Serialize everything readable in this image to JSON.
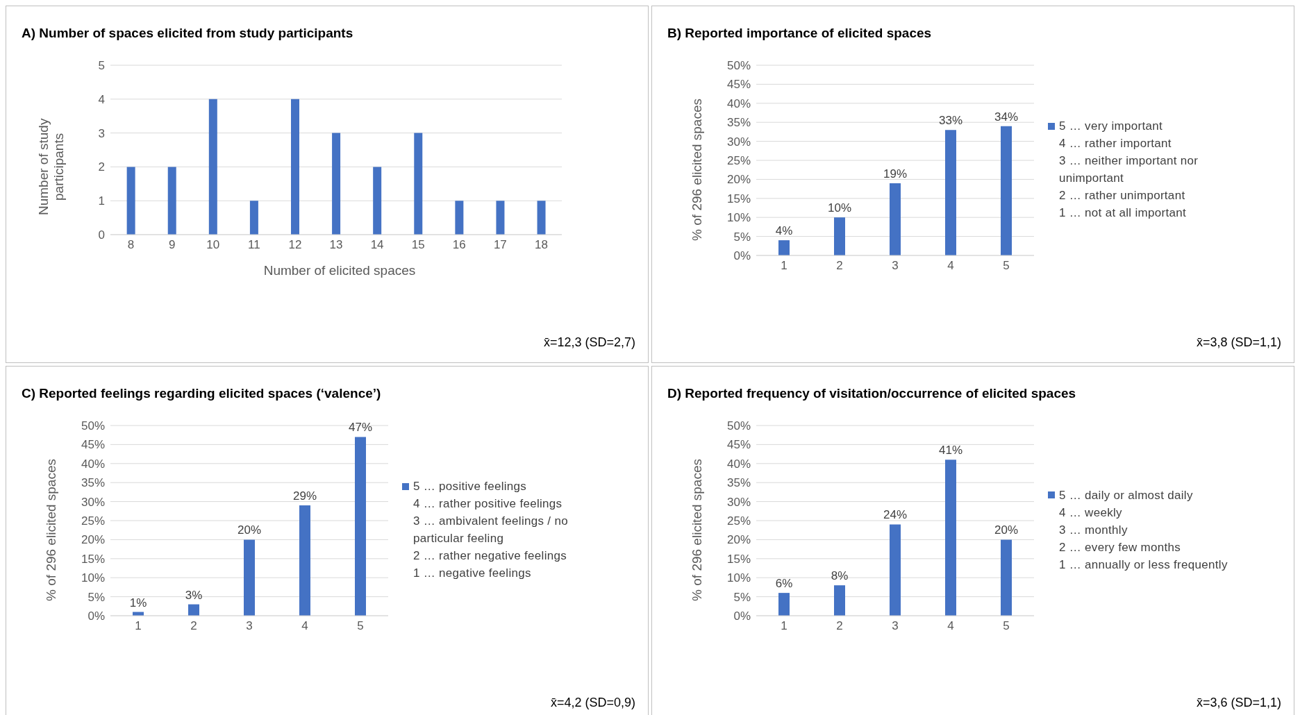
{
  "chart_data": [
    {
      "type": "bar",
      "title": "A) Number of spaces elicited from study participants",
      "categories": [
        "8",
        "9",
        "10",
        "11",
        "12",
        "13",
        "14",
        "15",
        "16",
        "17",
        "18"
      ],
      "values": [
        2,
        2,
        4,
        1,
        4,
        3,
        2,
        3,
        1,
        1,
        1
      ],
      "color": "#4472c4",
      "xlabel": "Number of elicited spaces",
      "ylabel": "Number of study participants",
      "ylim": [
        0,
        5
      ],
      "yticks": [
        0,
        1,
        2,
        3,
        4,
        5
      ],
      "grid": "y",
      "legend": false,
      "annotations": [
        "x̄=12,3 (SD=2,7)"
      ]
    },
    {
      "type": "bar",
      "title": "B) Reported importance of elicited spaces",
      "categories": [
        "1",
        "2",
        "3",
        "4",
        "5"
      ],
      "series": [
        {
          "name": "5 … very important",
          "color": "#4472c4",
          "values": [
            4,
            10,
            19,
            33,
            34
          ],
          "value_labels": [
            "4%",
            "10%",
            "19%",
            "33%",
            "34%"
          ]
        }
      ],
      "ylabel": "% of 296 elicited spaces",
      "ylim": [
        0,
        50
      ],
      "yticks": [
        {
          "value": 0,
          "label": "0%"
        },
        {
          "value": 5,
          "label": "5%"
        },
        {
          "value": 10,
          "label": "10%"
        },
        {
          "value": 15,
          "label": "15%"
        },
        {
          "value": 20,
          "label": "20%"
        },
        {
          "value": 25,
          "label": "25%"
        },
        {
          "value": 30,
          "label": "30%"
        },
        {
          "value": 35,
          "label": "35%"
        },
        {
          "value": 40,
          "label": "40%"
        },
        {
          "value": 45,
          "label": "45%"
        },
        {
          "value": 50,
          "label": "50%"
        }
      ],
      "grid": "y",
      "legend": "right",
      "annotations": [
        "4 … rather important",
        "3 … neither important nor unimportant",
        "2 … rather unimportant",
        "1 … not at all important",
        "x̄=3,8 (SD=1,1)"
      ]
    },
    {
      "type": "bar",
      "title": "C) Reported feelings regarding elicited spaces (‘valence’)",
      "categories": [
        "1",
        "2",
        "3",
        "4",
        "5"
      ],
      "series": [
        {
          "name": "5 … positive feelings",
          "color": "#4472c4",
          "values": [
            1,
            3,
            20,
            29,
            47
          ],
          "value_labels": [
            "1%",
            "3%",
            "20%",
            "29%",
            "47%"
          ]
        }
      ],
      "ylabel": "% of 296 elicited spaces",
      "ylim": [
        0,
        50
      ],
      "yticks": [
        {
          "value": 0,
          "label": "0%"
        },
        {
          "value": 5,
          "label": "5%"
        },
        {
          "value": 10,
          "label": "10%"
        },
        {
          "value": 15,
          "label": "15%"
        },
        {
          "value": 20,
          "label": "20%"
        },
        {
          "value": 25,
          "label": "25%"
        },
        {
          "value": 30,
          "label": "30%"
        },
        {
          "value": 35,
          "label": "35%"
        },
        {
          "value": 40,
          "label": "40%"
        },
        {
          "value": 45,
          "label": "45%"
        },
        {
          "value": 50,
          "label": "50%"
        }
      ],
      "grid": "y",
      "legend": "right",
      "annotations": [
        "4 … rather positive feelings",
        "3 … ambivalent feelings / no particular feeling",
        "2 … rather negative feelings",
        "1 … negative feelings",
        "x̄=4,2 (SD=0,9)"
      ]
    },
    {
      "type": "bar",
      "title": "D) Reported frequency of visitation/occurrence of elicited spaces",
      "categories": [
        "1",
        "2",
        "3",
        "4",
        "5"
      ],
      "series": [
        {
          "name": "5 … daily or almost daily",
          "color": "#4472c4",
          "values": [
            6,
            8,
            24,
            41,
            20
          ],
          "value_labels": [
            "6%",
            "8%",
            "24%",
            "41%",
            "20%"
          ]
        }
      ],
      "ylabel": "% of 296 elicited spaces",
      "ylim": [
        0,
        50
      ],
      "yticks": [
        {
          "value": 0,
          "label": "0%"
        },
        {
          "value": 5,
          "label": "5%"
        },
        {
          "value": 10,
          "label": "10%"
        },
        {
          "value": 15,
          "label": "15%"
        },
        {
          "value": 20,
          "label": "20%"
        },
        {
          "value": 25,
          "label": "25%"
        },
        {
          "value": 30,
          "label": "30%"
        },
        {
          "value": 35,
          "label": "35%"
        },
        {
          "value": 40,
          "label": "40%"
        },
        {
          "value": 45,
          "label": "45%"
        },
        {
          "value": 50,
          "label": "50%"
        }
      ],
      "grid": "y",
      "legend": "right",
      "annotations": [
        "4 … weekly",
        "3 … monthly",
        "2 … every few months",
        "1 … annually or less frequently",
        "x̄=3,6 (SD=1,1)"
      ]
    }
  ]
}
